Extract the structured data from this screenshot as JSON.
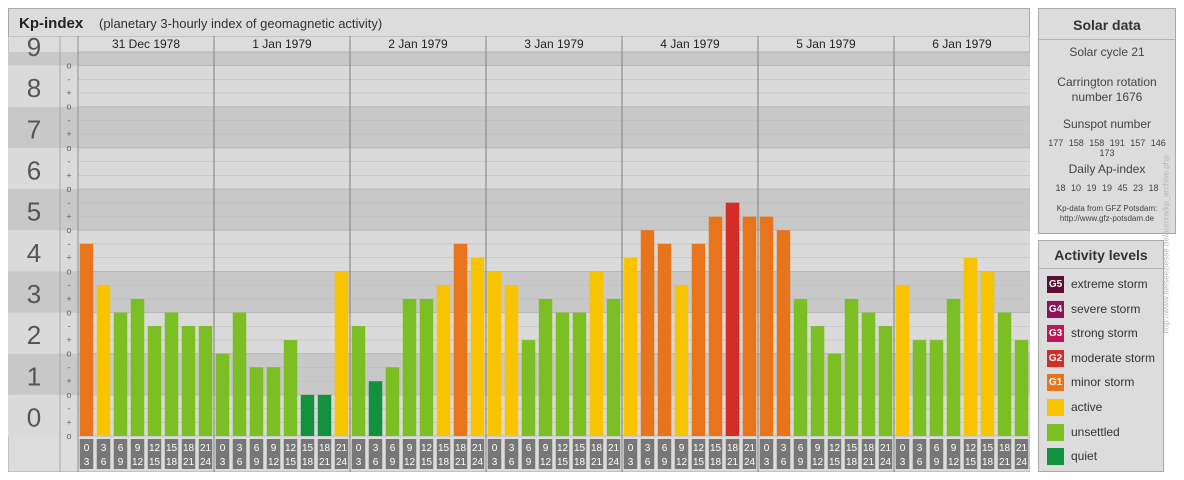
{
  "header": {
    "title": "Kp-index",
    "subtitle": "(planetary 3-hourly index of geomagnetic activity)"
  },
  "solar_panel": {
    "heading": "Solar data",
    "solar_cycle": "Solar cycle 21",
    "carrington_line1": "Carrington rotation",
    "carrington_line2": "number 1676",
    "sunspot_label": "Sunspot number",
    "sunspot_values": "177 158 158 191 157 146 173",
    "ap_label": "Daily Ap-index",
    "ap_values": "18 10 19 19 45 23 18",
    "source_line1": "Kp-data from GFZ Potsdam:",
    "source_line2": "http://www.gfz-potsdam.de"
  },
  "legend": {
    "heading": "Activity levels",
    "items": [
      {
        "code": "G5",
        "label": "extreme storm",
        "color": "#5a0f2e"
      },
      {
        "code": "G4",
        "label": "severe storm",
        "color": "#8c1458"
      },
      {
        "code": "G3",
        "label": "strong storm",
        "color": "#b8195a"
      },
      {
        "code": "G2",
        "label": "moderate storm",
        "color": "#d42d28"
      },
      {
        "code": "G1",
        "label": "minor storm",
        "color": "#e8741c"
      },
      {
        "code": "",
        "label": "active",
        "color": "#f8c300"
      },
      {
        "code": "",
        "label": "unsettled",
        "color": "#7cbf24"
      },
      {
        "code": "",
        "label": "quiet",
        "color": "#12913f"
      }
    ]
  },
  "credit": "http://www.tiefseeziesse.de/aurora/kp_archive.php",
  "chart_data": {
    "type": "bar",
    "ylim": [
      0,
      9
    ],
    "y_ticks": [
      "0",
      "1",
      "2",
      "3",
      "4",
      "5",
      "6",
      "7",
      "8",
      "9"
    ],
    "minor_marks": [
      "o",
      "+",
      "-"
    ],
    "interval_labels": [
      [
        "0",
        "3"
      ],
      [
        "3",
        "6"
      ],
      [
        "6",
        "9"
      ],
      [
        "9",
        "12"
      ],
      [
        "12",
        "15"
      ],
      [
        "15",
        "18"
      ],
      [
        "18",
        "21"
      ],
      [
        "21",
        "24"
      ]
    ],
    "days": [
      {
        "date": "31 Dec 1978",
        "kp": [
          4.67,
          3.67,
          3.0,
          3.33,
          2.67,
          3.0,
          2.67,
          2.67
        ]
      },
      {
        "date": "1 Jan 1979",
        "kp": [
          2.0,
          3.0,
          1.67,
          1.67,
          2.33,
          1.0,
          1.0,
          4.0
        ]
      },
      {
        "date": "2 Jan 1979",
        "kp": [
          2.67,
          1.33,
          1.67,
          3.33,
          3.33,
          3.67,
          4.67,
          4.33
        ]
      },
      {
        "date": "3 Jan 1979",
        "kp": [
          4.0,
          3.67,
          2.33,
          3.33,
          3.0,
          3.0,
          4.0,
          3.33
        ]
      },
      {
        "date": "4 Jan 1979",
        "kp": [
          4.33,
          5.0,
          4.67,
          3.67,
          4.67,
          5.33,
          5.67,
          5.33
        ]
      },
      {
        "date": "5 Jan 1979",
        "kp": [
          5.33,
          5.0,
          3.33,
          2.67,
          2.0,
          3.33,
          3.0,
          2.67
        ]
      },
      {
        "date": "6 Jan 1979",
        "kp": [
          3.67,
          2.33,
          2.33,
          3.33,
          4.33,
          4.0,
          3.0,
          2.33
        ]
      }
    ]
  }
}
